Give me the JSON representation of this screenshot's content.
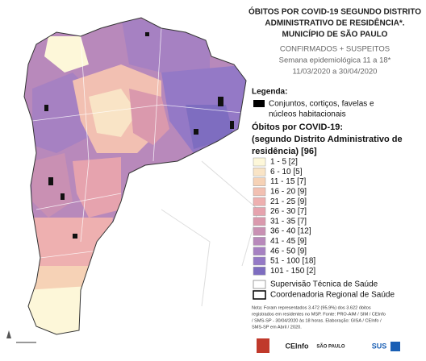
{
  "header": {
    "title": [
      "ÓBITOS POR COVID-19 SEGUNDO DISTRITO",
      "ADMINISTRATIVO DE RESIDÊNCIA*.",
      "MUNICÍPIO DE SÃO PAULO"
    ],
    "subtitle": [
      "CONFIRMADOS + SUSPEITOS",
      "Semana epidemiológica 11 a 18*",
      "11/03/2020 a 30/04/2020"
    ]
  },
  "legend": {
    "heading": "Legenda:",
    "housing": [
      "Conjuntos, cortiços, favelas e",
      "núcleos habitacionais"
    ],
    "classes_title": [
      "Óbitos por COVID-19:",
      "(segundo Distrito Administrativo de",
      "residência) [96]"
    ],
    "classes": [
      {
        "label": "1 - 5  [2]",
        "color": "#fdf7d9"
      },
      {
        "label": "6 - 10  [5]",
        "color": "#f9e4c6"
      },
      {
        "label": "11 - 15  [7]",
        "color": "#f6d2b6"
      },
      {
        "label": "16 - 20  [9]",
        "color": "#f2c0b2"
      },
      {
        "label": "21 - 25  [9]",
        "color": "#eeb0b0"
      },
      {
        "label": "26 - 30  [7]",
        "color": "#e6a3ae"
      },
      {
        "label": "31 - 35  [7]",
        "color": "#da99ad"
      },
      {
        "label": "36 - 40  [12]",
        "color": "#c990b3"
      },
      {
        "label": "41 - 45  [9]",
        "color": "#b889bb"
      },
      {
        "label": "46 - 50  [9]",
        "color": "#a681c2"
      },
      {
        "label": "51 - 100  [18]",
        "color": "#9479c6"
      },
      {
        "label": "101 - 150  [2]",
        "color": "#7e6dc0"
      }
    ],
    "boundaries": [
      "Supervisão Técnica de Saúde",
      "Coordenadoria Regional de Saúde"
    ]
  },
  "note": [
    "Nota: Foram representados 3.472 (95,9%) dos 3.622 óbitos",
    "registrados em residentes no MSP. Fonte: PRO-AIM / SIM / CEInfo",
    "/ SMS-SP - 30/04/2020 às 18 horas. Elaboração: GISA / CEInfo /",
    "SMS-SP em Abril / 2020."
  ],
  "logos": [
    "CEInfo",
    "SÃO PAULO",
    "SUS"
  ]
}
